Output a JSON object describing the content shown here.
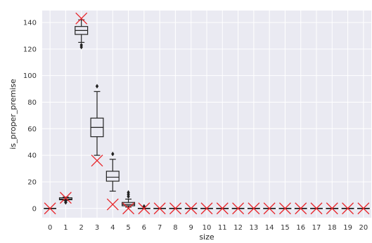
{
  "chart_data": {
    "type": "box",
    "xlabel": "size",
    "ylabel": "is_proper_premise",
    "categories": [
      "0",
      "1",
      "2",
      "3",
      "4",
      "5",
      "6",
      "7",
      "8",
      "9",
      "10",
      "11",
      "12",
      "13",
      "14",
      "15",
      "16",
      "17",
      "18",
      "19",
      "20"
    ],
    "ylim": [
      -7,
      149
    ],
    "yticks": [
      0,
      20,
      40,
      60,
      80,
      100,
      120,
      140
    ],
    "grid": true,
    "style": "seaborn-darkgrid",
    "colors": {
      "background": "#eaeaf2",
      "grid": "#ffffff",
      "box_stroke": "#222222",
      "marker": "#e8262b",
      "median_flat": "#111111"
    },
    "boxes": [
      {
        "x": 0,
        "q1": 0,
        "median": 0,
        "q3": 0,
        "whislo": 0,
        "whishi": 0,
        "fliers": []
      },
      {
        "x": 1,
        "q1": 6.5,
        "median": 7,
        "q3": 8,
        "whislo": 6,
        "whishi": 8.5,
        "fliers": [
          5,
          4.5
        ]
      },
      {
        "x": 2,
        "q1": 131,
        "median": 134,
        "q3": 137,
        "whislo": 125,
        "whishi": 142,
        "fliers": [
          123,
          121.5
        ]
      },
      {
        "x": 3,
        "q1": 54,
        "median": 61,
        "q3": 68,
        "whislo": 40,
        "whishi": 88,
        "fliers": [
          92
        ]
      },
      {
        "x": 4,
        "q1": 20.5,
        "median": 23.5,
        "q3": 28,
        "whislo": 13,
        "whishi": 37,
        "fliers": [
          41
        ]
      },
      {
        "x": 5,
        "q1": 2,
        "median": 3,
        "q3": 4.5,
        "whislo": 1,
        "whishi": 7,
        "fliers": [
          9,
          10.5,
          12
        ]
      },
      {
        "x": 6,
        "q1": 0,
        "median": 0,
        "q3": 0,
        "whislo": 0,
        "whishi": 0,
        "fliers": [
          1.5
        ]
      },
      {
        "x": 7,
        "q1": 0,
        "median": 0,
        "q3": 0,
        "whislo": 0,
        "whishi": 0,
        "fliers": []
      },
      {
        "x": 8,
        "q1": 0,
        "median": 0,
        "q3": 0,
        "whislo": 0,
        "whishi": 0,
        "fliers": []
      },
      {
        "x": 9,
        "q1": 0,
        "median": 0,
        "q3": 0,
        "whislo": 0,
        "whishi": 0,
        "fliers": []
      },
      {
        "x": 10,
        "q1": 0,
        "median": 0,
        "q3": 0,
        "whislo": 0,
        "whishi": 0,
        "fliers": []
      },
      {
        "x": 11,
        "q1": 0,
        "median": 0,
        "q3": 0,
        "whislo": 0,
        "whishi": 0,
        "fliers": []
      },
      {
        "x": 12,
        "q1": 0,
        "median": 0,
        "q3": 0,
        "whislo": 0,
        "whishi": 0,
        "fliers": []
      },
      {
        "x": 13,
        "q1": 0,
        "median": 0,
        "q3": 0,
        "whislo": 0,
        "whishi": 0,
        "fliers": []
      },
      {
        "x": 14,
        "q1": 0,
        "median": 0,
        "q3": 0,
        "whislo": 0,
        "whishi": 0,
        "fliers": []
      },
      {
        "x": 15,
        "q1": 0,
        "median": 0,
        "q3": 0,
        "whislo": 0,
        "whishi": 0,
        "fliers": []
      },
      {
        "x": 16,
        "q1": 0,
        "median": 0,
        "q3": 0,
        "whislo": 0,
        "whishi": 0,
        "fliers": []
      },
      {
        "x": 17,
        "q1": 0,
        "median": 0,
        "q3": 0,
        "whislo": 0,
        "whishi": 0,
        "fliers": []
      },
      {
        "x": 18,
        "q1": 0,
        "median": 0,
        "q3": 0,
        "whislo": 0,
        "whishi": 0,
        "fliers": []
      },
      {
        "x": 19,
        "q1": 0,
        "median": 0,
        "q3": 0,
        "whislo": 0,
        "whishi": 0,
        "fliers": []
      },
      {
        "x": 20,
        "q1": 0,
        "median": 0,
        "q3": 0,
        "whislo": 0,
        "whishi": 0,
        "fliers": []
      }
    ],
    "markers": [
      {
        "x": 0,
        "y": 0
      },
      {
        "x": 1,
        "y": 8
      },
      {
        "x": 2,
        "y": 143
      },
      {
        "x": 3,
        "y": 36
      },
      {
        "x": 4,
        "y": 3
      },
      {
        "x": 5,
        "y": 0
      },
      {
        "x": 6,
        "y": 0
      },
      {
        "x": 7,
        "y": 0
      },
      {
        "x": 8,
        "y": 0
      },
      {
        "x": 9,
        "y": 0
      },
      {
        "x": 10,
        "y": 0
      },
      {
        "x": 11,
        "y": 0
      },
      {
        "x": 12,
        "y": 0
      },
      {
        "x": 13,
        "y": 0
      },
      {
        "x": 14,
        "y": 0
      },
      {
        "x": 15,
        "y": 0
      },
      {
        "x": 16,
        "y": 0
      },
      {
        "x": 17,
        "y": 0
      },
      {
        "x": 18,
        "y": 0
      },
      {
        "x": 19,
        "y": 0
      },
      {
        "x": 20,
        "y": 0
      }
    ]
  }
}
